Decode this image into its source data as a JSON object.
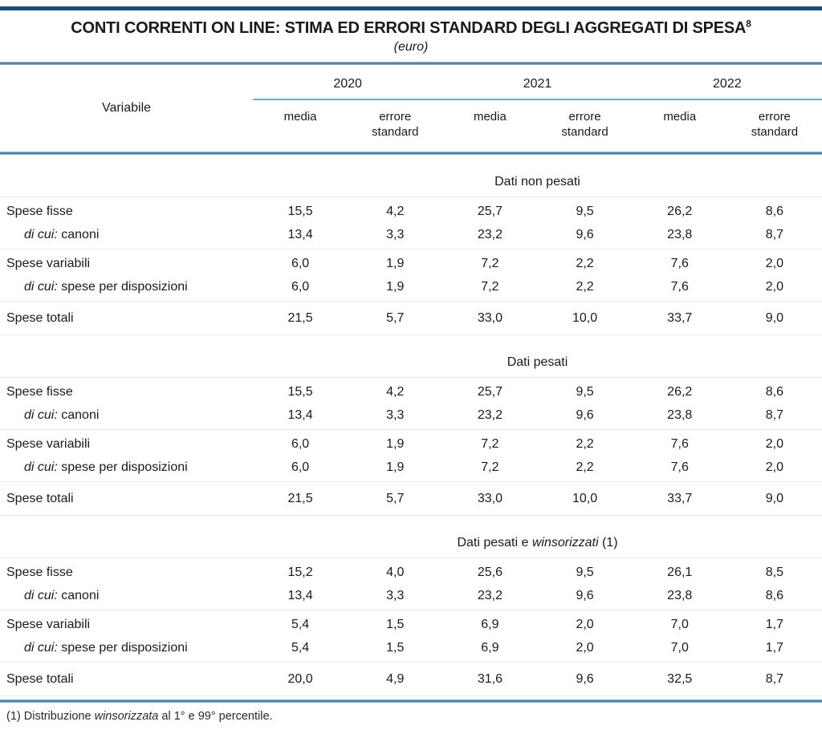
{
  "title": "CONTI CORRENTI ON LINE: STIMA ED ERRORI STANDARD DEGLI AGGREGATI DI SPESA",
  "title_superscript": "8",
  "subtitle": "(euro)",
  "header": {
    "variable_label": "Variabile",
    "year_groups": [
      {
        "year": "2020",
        "media_label": "media",
        "error_label": "errore standard"
      },
      {
        "year": "2021",
        "media_label": "media",
        "error_label": "errore standard"
      },
      {
        "year": "2022",
        "media_label": "media",
        "error_label": "errore standard"
      }
    ]
  },
  "sections": [
    {
      "title_parts": [
        {
          "text": "Dati non pesati",
          "italic": false
        }
      ],
      "rows": [
        {
          "prefix": "",
          "label": "Spese fisse",
          "indent": false,
          "total": false,
          "values": [
            "15,5",
            "4,2",
            "25,7",
            "9,5",
            "26,2",
            "8,6"
          ]
        },
        {
          "prefix": "di cui:",
          "label": " canoni",
          "indent": true,
          "total": false,
          "values": [
            "13,4",
            "3,3",
            "23,2",
            "9,6",
            "23,8",
            "8,7"
          ]
        },
        {
          "prefix": "",
          "label": "Spese variabili",
          "indent": false,
          "total": false,
          "values": [
            "6,0",
            "1,9",
            "7,2",
            "2,2",
            "7,6",
            "2,0"
          ]
        },
        {
          "prefix": "di cui:",
          "label": " spese per disposizioni",
          "indent": true,
          "total": false,
          "values": [
            "6,0",
            "1,9",
            "7,2",
            "2,2",
            "7,6",
            "2,0"
          ]
        },
        {
          "prefix": "",
          "label": "Spese totali",
          "indent": false,
          "total": true,
          "values": [
            "21,5",
            "5,7",
            "33,0",
            "10,0",
            "33,7",
            "9,0"
          ]
        }
      ]
    },
    {
      "title_parts": [
        {
          "text": "Dati pesati",
          "italic": false
        }
      ],
      "rows": [
        {
          "prefix": "",
          "label": "Spese fisse",
          "indent": false,
          "total": false,
          "values": [
            "15,5",
            "4,2",
            "25,7",
            "9,5",
            "26,2",
            "8,6"
          ]
        },
        {
          "prefix": "di cui:",
          "label": " canoni",
          "indent": true,
          "total": false,
          "values": [
            "13,4",
            "3,3",
            "23,2",
            "9,6",
            "23,8",
            "8,7"
          ]
        },
        {
          "prefix": "",
          "label": "Spese variabili",
          "indent": false,
          "total": false,
          "values": [
            "6,0",
            "1,9",
            "7,2",
            "2,2",
            "7,6",
            "2,0"
          ]
        },
        {
          "prefix": "di cui:",
          "label": " spese per disposizioni",
          "indent": true,
          "total": false,
          "values": [
            "6,0",
            "1,9",
            "7,2",
            "2,2",
            "7,6",
            "2,0"
          ]
        },
        {
          "prefix": "",
          "label": "Spese totali",
          "indent": false,
          "total": true,
          "values": [
            "21,5",
            "5,7",
            "33,0",
            "10,0",
            "33,7",
            "9,0"
          ]
        }
      ]
    },
    {
      "title_parts": [
        {
          "text": "Dati pesati e ",
          "italic": false
        },
        {
          "text": "winsorizzati",
          "italic": true
        },
        {
          "text": " (1)",
          "italic": false
        }
      ],
      "rows": [
        {
          "prefix": "",
          "label": "Spese fisse",
          "indent": false,
          "total": false,
          "values": [
            "15,2",
            "4,0",
            "25,6",
            "9,5",
            "26,1",
            "8,5"
          ]
        },
        {
          "prefix": "di cui:",
          "label": " canoni",
          "indent": true,
          "total": false,
          "values": [
            "13,4",
            "3,3",
            "23,2",
            "9,6",
            "23,8",
            "8,6"
          ]
        },
        {
          "prefix": "",
          "label": "Spese variabili",
          "indent": false,
          "total": false,
          "values": [
            "5,4",
            "1,5",
            "6,9",
            "2,0",
            "7,0",
            "1,7"
          ]
        },
        {
          "prefix": "di cui:",
          "label": " spese per disposizioni",
          "indent": true,
          "total": false,
          "values": [
            "5,4",
            "1,5",
            "6,9",
            "2,0",
            "7,0",
            "1,7"
          ]
        },
        {
          "prefix": "",
          "label": "Spese totali",
          "indent": false,
          "total": true,
          "values": [
            "20,0",
            "4,9",
            "31,6",
            "9,6",
            "32,5",
            "8,7"
          ]
        }
      ]
    }
  ],
  "footnote_parts": [
    {
      "text": "(1) Distribuzione ",
      "italic": false
    },
    {
      "text": "winsorizzata",
      "italic": true
    },
    {
      "text": " al 1° e 99° percentile.",
      "italic": false
    }
  ],
  "colors": {
    "top_rule": "#1e4a74",
    "table_rule": "#4a7da6",
    "table_rule_halo": "#b3cbdd",
    "year_underline": "#7aa9c8",
    "hairline": "#ececec",
    "text": "#1a1a1a"
  }
}
